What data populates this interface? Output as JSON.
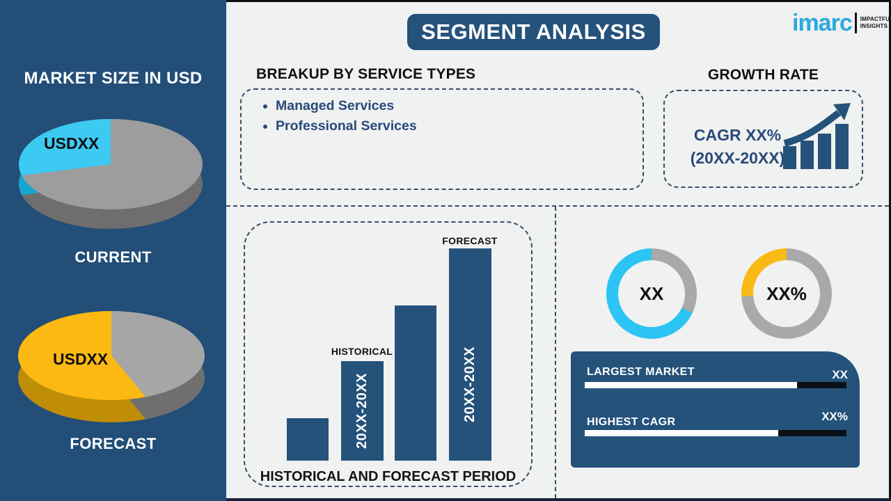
{
  "header": {
    "title": "SEGMENT ANALYSIS"
  },
  "logo": {
    "word": "imarc",
    "tagline_line1": "IMPACTFUL",
    "tagline_line2": "INSIGHTS",
    "word_color": "#2aa9e0"
  },
  "sidebar": {
    "title": "MARKET SIZE IN USD",
    "current": {
      "value_label": "USDXX",
      "caption": "CURRENT"
    },
    "forecast": {
      "value_label": "USDXX",
      "caption": "FORECAST"
    }
  },
  "breakup": {
    "title": "BREAKUP BY SERVICE TYPES",
    "items": [
      "Managed Services",
      "Professional Services"
    ]
  },
  "growth": {
    "title": "GROWTH RATE",
    "line1": "CAGR XX%",
    "line2": "(20XX-20XX)"
  },
  "summary_panel": {
    "rows": [
      {
        "label": "LARGEST MARKET",
        "value": "XX",
        "fill_percent": 81
      },
      {
        "label": "HIGHEST CAGR",
        "value": "XX%",
        "fill_percent": 74
      }
    ],
    "track_color": "#0c1016",
    "fill_color": "#ffffff",
    "panel_color": "#24527b"
  },
  "colors": {
    "navy_panel": "#24527b",
    "sidebar_navy": "#224e78",
    "background": "#f0f1f1",
    "cyan": "#3cc9f2",
    "yellow": "#fdb913",
    "gray": "#9d9d9d",
    "text_blue": "#29497a"
  },
  "chart_data": [
    {
      "id": "current-market-pie",
      "type": "pie",
      "title": "CURRENT",
      "style": "3d",
      "slices": [
        {
          "label": "USDXX",
          "color": "#3cc9f2",
          "percent_est": 27
        },
        {
          "label": "",
          "color": "#9d9d9d",
          "percent_est": 73
        }
      ],
      "segments_cw_from_top": [
        {
          "color": "#9d9d9d",
          "pct": 73
        },
        {
          "color": "#3cc9f2",
          "pct": 27
        }
      ],
      "depth_segments": [
        {
          "color": "#6e6e6e",
          "pct": 73
        },
        {
          "color": "#17a6d2",
          "pct": 27
        }
      ]
    },
    {
      "id": "forecast-market-pie",
      "type": "pie",
      "title": "FORECAST",
      "style": "3d",
      "slices": [
        {
          "label": "USDXX",
          "color": "#fdb913",
          "percent_est": 61
        },
        {
          "label": "",
          "color": "#a6a6a6",
          "percent_est": 39
        }
      ],
      "segments_cw_from_top": [
        {
          "color": "#a6a6a6",
          "pct": 39
        },
        {
          "color": "#fdb913",
          "pct": 61
        }
      ],
      "depth_segments": [
        {
          "color": "#6f6f6f",
          "pct": 39
        },
        {
          "color": "#c08d07",
          "pct": 61
        }
      ]
    },
    {
      "id": "period-bars",
      "type": "bar",
      "title": "HISTORICAL AND FORECAST PERIOD",
      "bar_color": "#24527a",
      "bars": [
        {
          "label": "",
          "annotation": "",
          "value_rel": 20
        },
        {
          "label": "20XX-20XX",
          "annotation": "HISTORICAL",
          "value_rel": 47
        },
        {
          "label": "",
          "annotation": "",
          "value_rel": 73
        },
        {
          "label": "20XX-20XX",
          "annotation": "FORECAST",
          "value_rel": 100
        }
      ],
      "ylim": [
        0,
        100
      ],
      "grid": false,
      "axes_shown": false
    },
    {
      "id": "largest-market-donut",
      "type": "pie",
      "subtype": "donut",
      "center_label": "XX",
      "segments_cw_from_top": [
        {
          "color": "#a9a9a9",
          "pct": 32
        },
        {
          "color": "#2cc4f4",
          "pct": 68
        }
      ]
    },
    {
      "id": "highest-cagr-donut",
      "type": "pie",
      "subtype": "donut",
      "center_label": "XX%",
      "segments_cw_from_top": [
        {
          "color": "#a9a9a9",
          "pct": 74
        },
        {
          "color": "#fbb917",
          "pct": 26
        }
      ]
    }
  ]
}
